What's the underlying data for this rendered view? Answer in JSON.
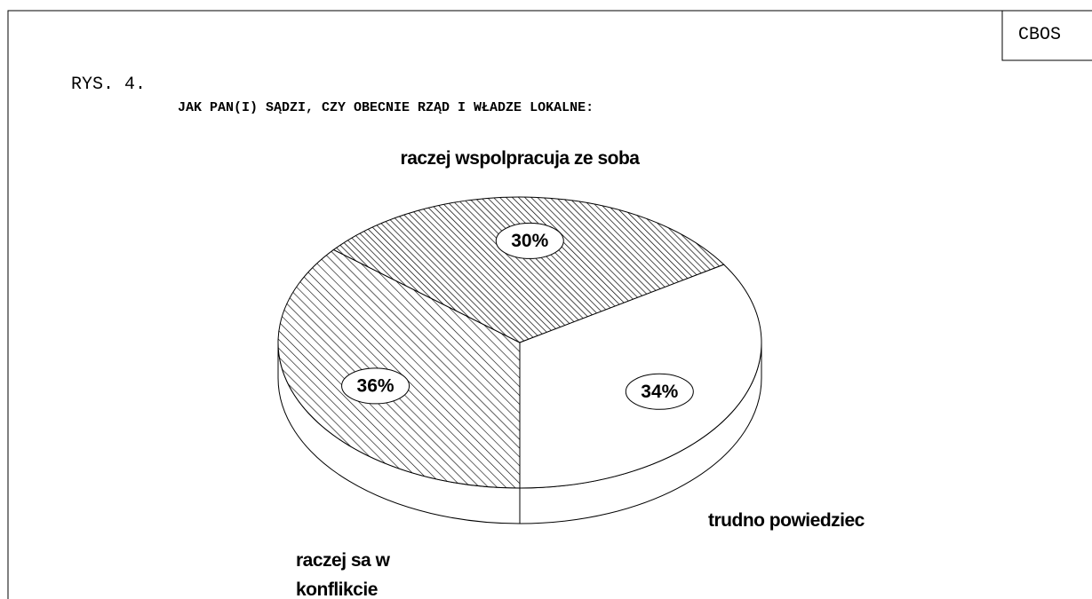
{
  "header": {
    "source": "CBOS",
    "figure": "RYS. 4."
  },
  "chart_data": {
    "type": "pie",
    "title": "JAK PAN(I) SĄDZI, CZY OBECNIE RZĄD I WŁADZE LOKALNE:",
    "categories": [
      "raczej sa w konflikcie",
      "raczej wspolpracuja ze soba",
      "trudno powiedziec"
    ],
    "values": [
      36,
      30,
      34
    ],
    "value_labels": [
      "36%",
      "30%",
      "34%"
    ]
  }
}
